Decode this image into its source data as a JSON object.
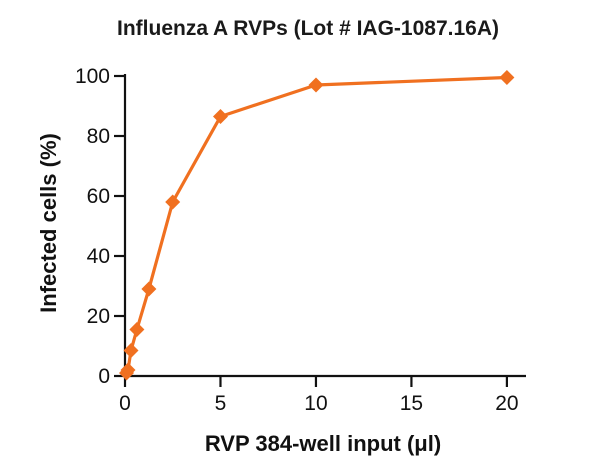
{
  "chart_data": {
    "type": "line",
    "title": "Influenza A RVPs (Lot # IAG-1087.16A)",
    "xlabel": "RVP 384-well input (μl)",
    "ylabel": "Infected cells (%)",
    "xlim": [
      0,
      21
    ],
    "ylim": [
      0,
      100
    ],
    "xticks": [
      0,
      5,
      10,
      15,
      20
    ],
    "yticks": [
      0,
      20,
      40,
      60,
      80,
      100
    ],
    "grid": false,
    "series": [
      {
        "marker": "diamond",
        "color": "#f07020",
        "x": [
          0.078,
          0.156,
          0.3125,
          0.625,
          1.25,
          2.5,
          5,
          10,
          20
        ],
        "y": [
          1,
          2,
          8.5,
          15.5,
          29,
          58,
          86.5,
          97,
          99.5
        ]
      }
    ]
  }
}
